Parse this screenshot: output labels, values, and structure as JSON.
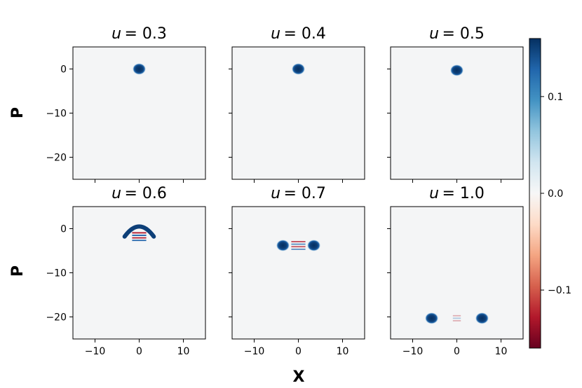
{
  "figure": {
    "xlabel": "X",
    "ylabel": "P"
  },
  "colorbar": {
    "colormap": "RdBu",
    "range": [
      -0.16,
      0.16
    ],
    "ticks": [
      0.1,
      0.0,
      -0.1
    ],
    "tick_labels": [
      "0.1",
      "0.0",
      "−0.1"
    ]
  },
  "chart_data": [
    {
      "type": "heatmap",
      "title": "u = 0.3",
      "title_prefix": "u",
      "title_value": "= 0.3",
      "xlim": [
        -15,
        15
      ],
      "ylim": [
        -25,
        5
      ],
      "xticks": [
        -10,
        0,
        10
      ],
      "yticks": [
        0,
        -10,
        -20
      ],
      "features": [
        {
          "kind": "blob",
          "x": 0,
          "p": 0,
          "amp": 0.16
        }
      ]
    },
    {
      "type": "heatmap",
      "title": "u = 0.4",
      "title_prefix": "u",
      "title_value": "= 0.4",
      "xlim": [
        -15,
        15
      ],
      "ylim": [
        -25,
        5
      ],
      "xticks": [
        -10,
        0,
        10
      ],
      "yticks": [
        0,
        -10,
        -20
      ],
      "features": [
        {
          "kind": "blob",
          "x": 0,
          "p": 0,
          "amp": 0.16
        }
      ]
    },
    {
      "type": "heatmap",
      "title": "u = 0.5",
      "title_prefix": "u",
      "title_value": "= 0.5",
      "xlim": [
        -15,
        15
      ],
      "ylim": [
        -25,
        5
      ],
      "xticks": [
        -10,
        0,
        10
      ],
      "yticks": [
        0,
        -10,
        -20
      ],
      "features": [
        {
          "kind": "blob",
          "x": 0,
          "p": -0.3,
          "amp": 0.16
        }
      ]
    },
    {
      "type": "heatmap",
      "title": "u = 0.6",
      "title_prefix": "u",
      "title_value": "= 0.6",
      "xlim": [
        -15,
        15
      ],
      "ylim": [
        -25,
        5
      ],
      "xticks": [
        -10,
        0,
        10
      ],
      "yticks": [
        0,
        -10,
        -20
      ],
      "features": [
        {
          "kind": "arc",
          "x": 0,
          "p": -1,
          "amp": 0.16
        },
        {
          "kind": "fringe",
          "x": 0,
          "p": -1.8,
          "amp": -0.16
        }
      ]
    },
    {
      "type": "heatmap",
      "title": "u = 0.7",
      "title_prefix": "u",
      "title_value": "= 0.7",
      "xlim": [
        -15,
        15
      ],
      "ylim": [
        -25,
        5
      ],
      "xticks": [
        -10,
        0,
        10
      ],
      "yticks": [
        0,
        -10,
        -20
      ],
      "features": [
        {
          "kind": "blob",
          "x": -3.5,
          "p": -3.8,
          "amp": 0.16
        },
        {
          "kind": "blob",
          "x": 3.5,
          "p": -3.8,
          "amp": 0.16
        },
        {
          "kind": "fringe",
          "x": 0,
          "p": -3.8,
          "amp": -0.12
        }
      ]
    },
    {
      "type": "heatmap",
      "title": "u = 1.0",
      "title_prefix": "u",
      "title_value": "= 1.0",
      "xlim": [
        -15,
        15
      ],
      "ylim": [
        -25,
        5
      ],
      "xticks": [
        -10,
        0,
        10
      ],
      "yticks": [
        0,
        -10,
        -20
      ],
      "features": [
        {
          "kind": "blob",
          "x": -5.7,
          "p": -20.3,
          "amp": 0.16
        },
        {
          "kind": "blob",
          "x": 5.7,
          "p": -20.3,
          "amp": 0.16
        },
        {
          "kind": "fringe",
          "x": 0,
          "p": -20.3,
          "amp": -0.05
        }
      ]
    }
  ]
}
